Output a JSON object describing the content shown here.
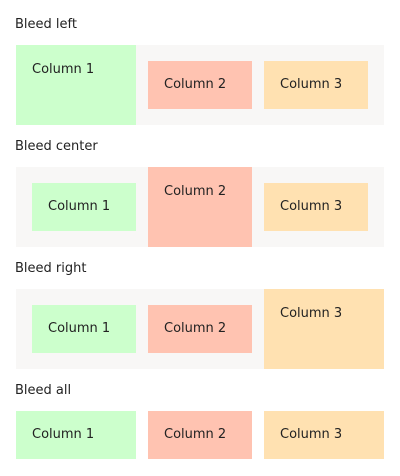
{
  "sections": [
    {
      "title": "Bleed left",
      "columns": [
        "Column 1",
        "Column 2",
        "Column 3"
      ]
    },
    {
      "title": "Bleed center",
      "columns": [
        "Column 1",
        "Column 2",
        "Column 3"
      ]
    },
    {
      "title": "Bleed right",
      "columns": [
        "Column 1",
        "Column 2",
        "Column 3"
      ]
    },
    {
      "title": "Bleed all",
      "columns": [
        "Column 1",
        "Column 2",
        "Column 3"
      ]
    }
  ],
  "colors": {
    "column_1": "#ccffcc",
    "column_2": "#ffc3b1",
    "column_3": "#ffe1b1",
    "row_background": "#f8f7f6"
  }
}
